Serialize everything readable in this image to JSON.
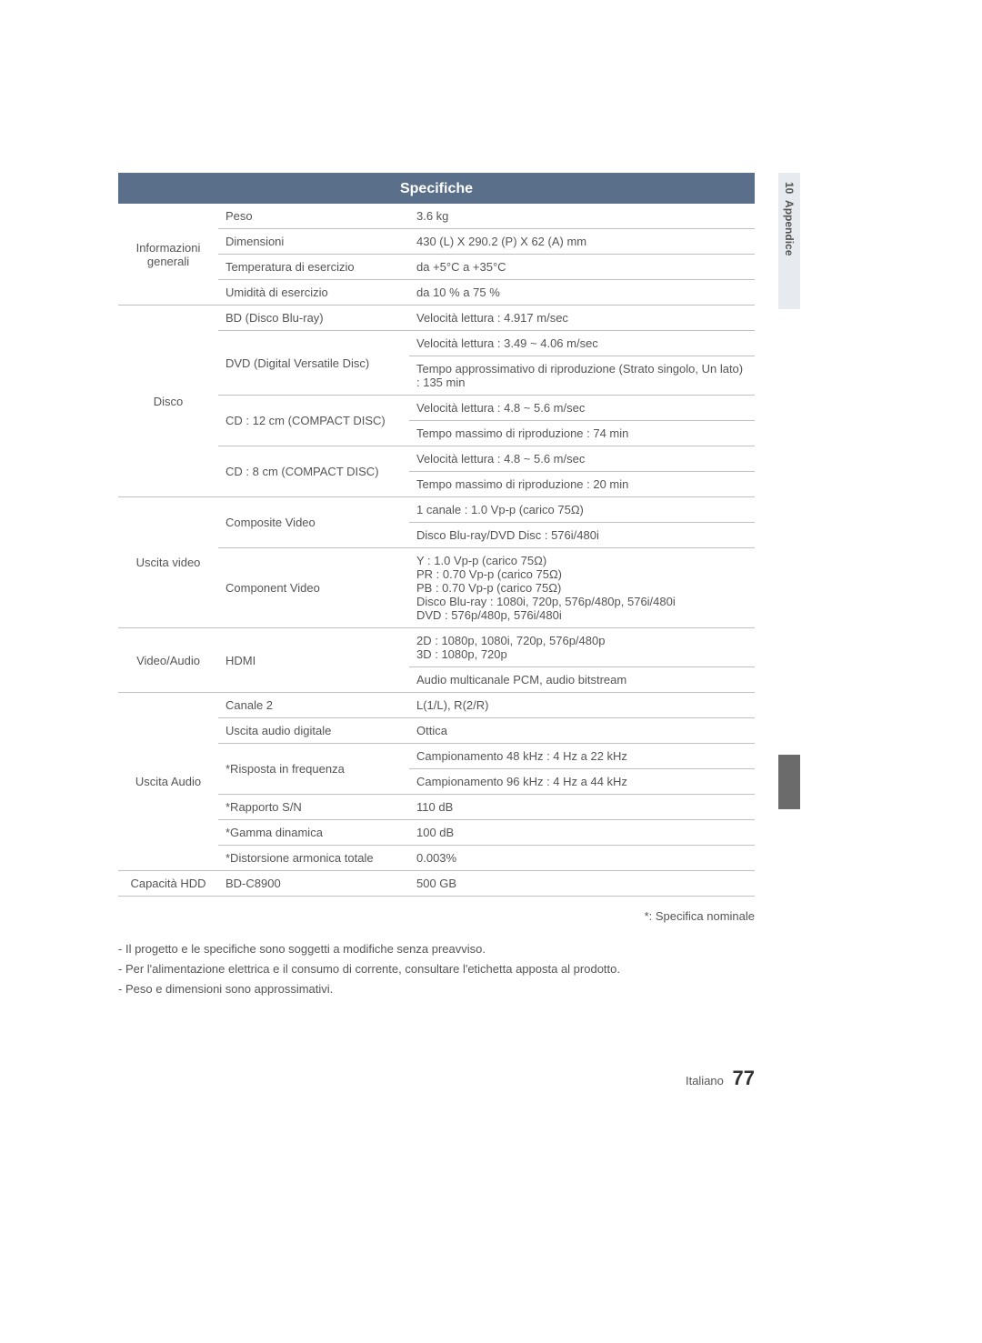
{
  "header": "Specifiche",
  "side_tab_num": "10",
  "side_tab_label": "Appendice",
  "colors": {
    "header_bg": "#5a708a",
    "header_text": "#ffffff",
    "border": "#bfbfbf",
    "section_border": "#9aa3af",
    "text": "#555555",
    "tab_bg": "#e7eaee",
    "side_block": "#6b6b6b"
  },
  "sections": [
    {
      "category": "Informazioni generali",
      "rows": [
        {
          "label": "Peso",
          "values": [
            "3.6 kg"
          ]
        },
        {
          "label": "Dimensioni",
          "values": [
            "430 (L) X 290.2 (P) X 62 (A) mm"
          ]
        },
        {
          "label": "Temperatura di esercizio",
          "values": [
            "da +5°C a +35°C"
          ]
        },
        {
          "label": "Umidità di esercizio",
          "values": [
            "da 10 % a 75 %"
          ]
        }
      ]
    },
    {
      "category": "Disco",
      "rows": [
        {
          "label": "BD (Disco Blu-ray)",
          "values": [
            "Velocità lettura : 4.917 m/sec"
          ]
        },
        {
          "label": "DVD (Digital Versatile Disc)",
          "values": [
            "Velocità lettura : 3.49 ~ 4.06 m/sec",
            "Tempo approssimativo di riproduzione (Strato singolo, Un lato) : 135 min"
          ]
        },
        {
          "label": "CD : 12 cm (COMPACT DISC)",
          "values": [
            "Velocità lettura : 4.8 ~ 5.6 m/sec",
            "Tempo massimo di riproduzione : 74 min"
          ]
        },
        {
          "label": "CD : 8 cm (COMPACT DISC)",
          "values": [
            "Velocità lettura : 4.8 ~ 5.6 m/sec",
            "Tempo massimo di riproduzione : 20 min"
          ]
        }
      ]
    },
    {
      "category": "Uscita video",
      "rows": [
        {
          "label": "Composite Video",
          "values": [
            "1 canale : 1.0 Vp-p (carico 75Ω)",
            "Disco Blu-ray/DVD Disc : 576i/480i"
          ]
        },
        {
          "label": "Component Video",
          "values": [
            "Y : 1.0 Vp-p (carico 75Ω)\nPR : 0.70 Vp-p (carico 75Ω)\nPB : 0.70 Vp-p (carico 75Ω)\nDisco Blu-ray : 1080i, 720p, 576p/480p, 576i/480i\nDVD : 576p/480p, 576i/480i"
          ]
        }
      ]
    },
    {
      "category": "Video/Audio",
      "rows": [
        {
          "label": "HDMI",
          "values": [
            "2D : 1080p, 1080i, 720p, 576p/480p\n3D : 1080p, 720p",
            "Audio multicanale PCM, audio bitstream"
          ]
        }
      ]
    },
    {
      "category": "Uscita Audio",
      "rows": [
        {
          "label": "Canale 2",
          "values": [
            "L(1/L), R(2/R)"
          ]
        },
        {
          "label": "Uscita audio digitale",
          "values": [
            "Ottica"
          ]
        },
        {
          "label": "*Risposta in frequenza",
          "values": [
            "Campionamento 48 kHz : 4 Hz a 22 kHz",
            "Campionamento 96 kHz : 4 Hz a 44 kHz"
          ]
        },
        {
          "label": "*Rapporto S/N",
          "values": [
            "110 dB"
          ]
        },
        {
          "label": "*Gamma dinamica",
          "values": [
            "100 dB"
          ]
        },
        {
          "label": "*Distorsione armonica totale",
          "values": [
            "0.003%"
          ]
        }
      ]
    },
    {
      "category": "Capacità HDD",
      "rows": [
        {
          "label": "BD-C8900",
          "values": [
            "500 GB"
          ]
        }
      ]
    }
  ],
  "note_right": "*: Specifica nominale",
  "notes": [
    "Il progetto e le specifiche sono soggetti a modifiche senza preavviso.",
    "Per l'alimentazione elettrica e il consumo di corrente, consultare l'etichetta apposta al prodotto.",
    "Peso e dimensioni sono approssimativi."
  ],
  "footer_lang": "Italiano",
  "footer_page": "77"
}
